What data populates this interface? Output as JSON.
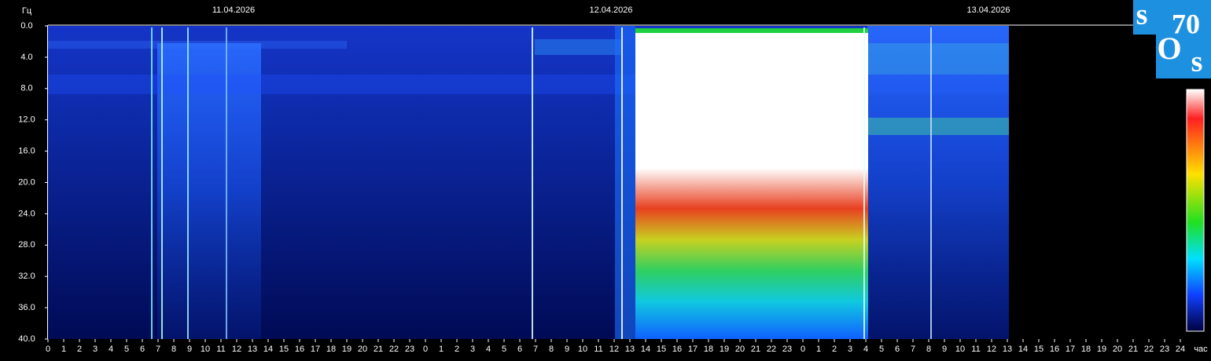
{
  "chart_data": {
    "type": "spectrogram",
    "y_label": "Гц",
    "x_label": "час",
    "dates": [
      "11.04.2026",
      "12.04.2026",
      "13.04.2026"
    ],
    "xlim": [
      0,
      72
    ],
    "ylim": [
      0,
      40
    ],
    "y_inverted": true,
    "yticks": [
      {
        "value": 0,
        "label": "0.0"
      },
      {
        "value": 4,
        "label": "4.0"
      },
      {
        "value": 8,
        "label": "8.0"
      },
      {
        "value": 12,
        "label": "12.0"
      },
      {
        "value": 16,
        "label": "16.0"
      },
      {
        "value": 20,
        "label": "20.0"
      },
      {
        "value": 24,
        "label": "24.0"
      },
      {
        "value": 28,
        "label": "28.0"
      },
      {
        "value": 32,
        "label": "32.0"
      },
      {
        "value": 36,
        "label": "36.0"
      },
      {
        "value": 40,
        "label": "40.0"
      }
    ],
    "xticks": [
      0,
      1,
      2,
      3,
      4,
      5,
      6,
      7,
      8,
      9,
      10,
      11,
      12,
      13,
      14,
      15,
      16,
      17,
      18,
      19,
      20,
      21,
      22,
      23,
      {
        "value": 24,
        "label": "0"
      },
      {
        "value": 25,
        "label": "1"
      },
      {
        "value": 26,
        "label": "2"
      },
      {
        "value": 27,
        "label": "3"
      },
      {
        "value": 28,
        "label": "4"
      },
      {
        "value": 29,
        "label": "5"
      },
      {
        "value": 30,
        "label": "6"
      },
      {
        "value": 31,
        "label": "7"
      },
      {
        "value": 32,
        "label": "8"
      },
      {
        "value": 33,
        "label": "9"
      },
      {
        "value": 34,
        "label": "10"
      },
      {
        "value": 35,
        "label": "11"
      },
      {
        "value": 36,
        "label": "12"
      },
      {
        "value": 37,
        "label": "13"
      },
      {
        "value": 38,
        "label": "14"
      },
      {
        "value": 39,
        "label": "15"
      },
      {
        "value": 40,
        "label": "16"
      },
      {
        "value": 41,
        "label": "17"
      },
      {
        "value": 42,
        "label": "18"
      },
      {
        "value": 43,
        "label": "19"
      },
      {
        "value": 44,
        "label": "20"
      },
      {
        "value": 45,
        "label": "21"
      },
      {
        "value": 46,
        "label": "22"
      },
      {
        "value": 47,
        "label": "23"
      },
      {
        "value": 48,
        "label": "0"
      },
      {
        "value": 49,
        "label": "1"
      },
      {
        "value": 50,
        "label": "2"
      },
      {
        "value": 51,
        "label": "3"
      },
      {
        "value": 52,
        "label": "4"
      },
      {
        "value": 53,
        "label": "5"
      },
      {
        "value": 54,
        "label": "6"
      },
      {
        "value": 55,
        "label": "7"
      },
      {
        "value": 56,
        "label": "8"
      },
      {
        "value": 57,
        "label": "9"
      },
      {
        "value": 58,
        "label": "10"
      },
      {
        "value": 59,
        "label": "11"
      },
      {
        "value": 60,
        "label": "12"
      },
      {
        "value": 61,
        "label": "13"
      },
      {
        "value": 62,
        "label": "14"
      },
      {
        "value": 63,
        "label": "15"
      },
      {
        "value": 64,
        "label": "16"
      },
      {
        "value": 65,
        "label": "17"
      },
      {
        "value": 66,
        "label": "18"
      },
      {
        "value": 67,
        "label": "19"
      },
      {
        "value": 68,
        "label": "20"
      },
      {
        "value": 69,
        "label": "21"
      },
      {
        "value": 70,
        "label": "22"
      },
      {
        "value": 71,
        "label": "23"
      },
      {
        "value": 72,
        "label": "24"
      }
    ],
    "logo": [
      "s",
      "70",
      "O",
      "s"
    ]
  }
}
